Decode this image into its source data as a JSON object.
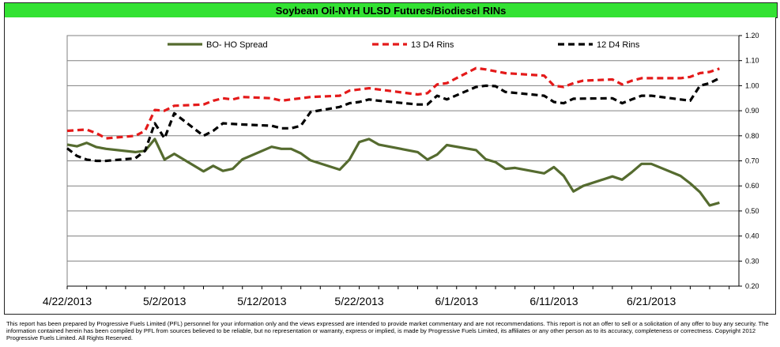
{
  "title": "Soybean Oil-NYH ULSD Futures/Biodiesel RINs",
  "disclaimer": "This report has been prepared by Progressive Fuels Limited (PFL) personnel for your information only and the views expressed are intended to provide market commentary and are not recommendations. This report is not an offer to sell or a solicitation of any offer to buy any security. The information contained herein has been compiled by PFL from sources believed to be reliable, but no representation or warranty, express or implied, is made by Progressive Fuels Limited, its affiliates or any other person as to its accuracy, completeness or correctness. Copyright 2012 Progressive Fuels Limited.  All Rights Reserved.",
  "colors": {
    "title_band": "#33e233",
    "bo_ho": "#556b2f",
    "d4_13": "#e41a1a",
    "d4_12": "#000000"
  },
  "chart_data": {
    "type": "line",
    "title": "Soybean Oil-NYH ULSD Futures/Biodiesel RINs",
    "xlabel": "",
    "ylabel": "",
    "ylim": [
      0.2,
      1.2
    ],
    "xlim": [
      "2013-04-22",
      "2013-06-30"
    ],
    "y_ticks": [
      "0.20",
      "0.30",
      "0.40",
      "0.50",
      "0.60",
      "0.70",
      "0.80",
      "0.90",
      "1.00",
      "1.10",
      "1.20"
    ],
    "x_ticks": [
      "4/22/2013",
      "5/2/2013",
      "5/12/2013",
      "5/22/2013",
      "6/1/2013",
      "6/11/2013",
      "6/21/2013"
    ],
    "legend_position": "top",
    "grid": "horizontal",
    "series": [
      {
        "name": "BO- HO Spread",
        "style": "solid",
        "points": [
          [
            "2013-04-22",
            0.765
          ],
          [
            "2013-04-23",
            0.758
          ],
          [
            "2013-04-24",
            0.772
          ],
          [
            "2013-04-25",
            0.755
          ],
          [
            "2013-04-26",
            0.748
          ],
          [
            "2013-04-29",
            0.735
          ],
          [
            "2013-04-30",
            0.74
          ],
          [
            "2013-05-01",
            0.787
          ],
          [
            "2013-05-02",
            0.705
          ],
          [
            "2013-05-03",
            0.728
          ],
          [
            "2013-05-06",
            0.658
          ],
          [
            "2013-05-07",
            0.68
          ],
          [
            "2013-05-08",
            0.66
          ],
          [
            "2013-05-09",
            0.668
          ],
          [
            "2013-05-10",
            0.706
          ],
          [
            "2013-05-13",
            0.756
          ],
          [
            "2013-05-14",
            0.748
          ],
          [
            "2013-05-15",
            0.748
          ],
          [
            "2013-05-16",
            0.73
          ],
          [
            "2013-05-17",
            0.702
          ],
          [
            "2013-05-20",
            0.665
          ],
          [
            "2013-05-21",
            0.705
          ],
          [
            "2013-05-22",
            0.775
          ],
          [
            "2013-05-23",
            0.787
          ],
          [
            "2013-05-24",
            0.765
          ],
          [
            "2013-05-28",
            0.735
          ],
          [
            "2013-05-29",
            0.705
          ],
          [
            "2013-05-30",
            0.725
          ],
          [
            "2013-05-31",
            0.763
          ],
          [
            "2013-06-03",
            0.743
          ],
          [
            "2013-06-04",
            0.706
          ],
          [
            "2013-06-05",
            0.695
          ],
          [
            "2013-06-06",
            0.668
          ],
          [
            "2013-06-07",
            0.672
          ],
          [
            "2013-06-10",
            0.65
          ],
          [
            "2013-06-11",
            0.675
          ],
          [
            "2013-06-12",
            0.64
          ],
          [
            "2013-06-13",
            0.578
          ],
          [
            "2013-06-14",
            0.6
          ],
          [
            "2013-06-17",
            0.638
          ],
          [
            "2013-06-18",
            0.625
          ],
          [
            "2013-06-19",
            0.655
          ],
          [
            "2013-06-20",
            0.688
          ],
          [
            "2013-06-21",
            0.688
          ],
          [
            "2013-06-24",
            0.64
          ],
          [
            "2013-06-25",
            0.61
          ],
          [
            "2013-06-26",
            0.575
          ],
          [
            "2013-06-27",
            0.522
          ],
          [
            "2013-06-28",
            0.533
          ]
        ]
      },
      {
        "name": "13 D4 Rins",
        "style": "dashed",
        "points": [
          [
            "2013-04-22",
            0.82
          ],
          [
            "2013-04-24",
            0.825
          ],
          [
            "2013-04-25",
            0.81
          ],
          [
            "2013-04-26",
            0.79
          ],
          [
            "2013-04-29",
            0.8
          ],
          [
            "2013-04-30",
            0.82
          ],
          [
            "2013-05-01",
            0.903
          ],
          [
            "2013-05-02",
            0.9
          ],
          [
            "2013-05-03",
            0.92
          ],
          [
            "2013-05-06",
            0.925
          ],
          [
            "2013-05-07",
            0.94
          ],
          [
            "2013-05-08",
            0.95
          ],
          [
            "2013-05-09",
            0.945
          ],
          [
            "2013-05-10",
            0.955
          ],
          [
            "2013-05-13",
            0.95
          ],
          [
            "2013-05-14",
            0.94
          ],
          [
            "2013-05-15",
            0.945
          ],
          [
            "2013-05-16",
            0.95
          ],
          [
            "2013-05-17",
            0.955
          ],
          [
            "2013-05-20",
            0.96
          ],
          [
            "2013-05-21",
            0.98
          ],
          [
            "2013-05-23",
            0.99
          ],
          [
            "2013-05-24",
            0.985
          ],
          [
            "2013-05-28",
            0.965
          ],
          [
            "2013-05-29",
            0.97
          ],
          [
            "2013-05-30",
            1.005
          ],
          [
            "2013-05-31",
            1.01
          ],
          [
            "2013-06-03",
            1.07
          ],
          [
            "2013-06-04",
            1.065
          ],
          [
            "2013-06-06",
            1.05
          ],
          [
            "2013-06-10",
            1.04
          ],
          [
            "2013-06-11",
            1.0
          ],
          [
            "2013-06-12",
            0.995
          ],
          [
            "2013-06-13",
            1.01
          ],
          [
            "2013-06-14",
            1.02
          ],
          [
            "2013-06-17",
            1.025
          ],
          [
            "2013-06-18",
            1.005
          ],
          [
            "2013-06-19",
            1.02
          ],
          [
            "2013-06-20",
            1.03
          ],
          [
            "2013-06-24",
            1.03
          ],
          [
            "2013-06-25",
            1.035
          ],
          [
            "2013-06-26",
            1.05
          ],
          [
            "2013-06-27",
            1.055
          ],
          [
            "2013-06-28",
            1.068
          ]
        ]
      },
      {
        "name": "12 D4 Rins",
        "style": "dashed",
        "points": [
          [
            "2013-04-22",
            0.75
          ],
          [
            "2013-04-23",
            0.72
          ],
          [
            "2013-04-24",
            0.705
          ],
          [
            "2013-04-25",
            0.7
          ],
          [
            "2013-04-26",
            0.7
          ],
          [
            "2013-04-29",
            0.71
          ],
          [
            "2013-04-30",
            0.74
          ],
          [
            "2013-05-01",
            0.85
          ],
          [
            "2013-05-02",
            0.79
          ],
          [
            "2013-05-03",
            0.89
          ],
          [
            "2013-05-06",
            0.8
          ],
          [
            "2013-05-07",
            0.82
          ],
          [
            "2013-05-08",
            0.85
          ],
          [
            "2013-05-10",
            0.845
          ],
          [
            "2013-05-13",
            0.84
          ],
          [
            "2013-05-14",
            0.83
          ],
          [
            "2013-05-15",
            0.83
          ],
          [
            "2013-05-16",
            0.84
          ],
          [
            "2013-05-17",
            0.895
          ],
          [
            "2013-05-20",
            0.915
          ],
          [
            "2013-05-21",
            0.93
          ],
          [
            "2013-05-22",
            0.935
          ],
          [
            "2013-05-23",
            0.945
          ],
          [
            "2013-05-24",
            0.94
          ],
          [
            "2013-05-28",
            0.925
          ],
          [
            "2013-05-29",
            0.925
          ],
          [
            "2013-05-30",
            0.96
          ],
          [
            "2013-05-31",
            0.945
          ],
          [
            "2013-06-03",
            0.995
          ],
          [
            "2013-06-04",
            1.0
          ],
          [
            "2013-06-05",
            0.998
          ],
          [
            "2013-06-06",
            0.975
          ],
          [
            "2013-06-10",
            0.96
          ],
          [
            "2013-06-11",
            0.935
          ],
          [
            "2013-06-12",
            0.93
          ],
          [
            "2013-06-13",
            0.948
          ],
          [
            "2013-06-17",
            0.95
          ],
          [
            "2013-06-18",
            0.93
          ],
          [
            "2013-06-19",
            0.945
          ],
          [
            "2013-06-20",
            0.96
          ],
          [
            "2013-06-21",
            0.96
          ],
          [
            "2013-06-24",
            0.945
          ],
          [
            "2013-06-25",
            0.94
          ],
          [
            "2013-06-26",
            1.0
          ],
          [
            "2013-06-27",
            1.01
          ],
          [
            "2013-06-28",
            1.03
          ]
        ]
      }
    ]
  }
}
